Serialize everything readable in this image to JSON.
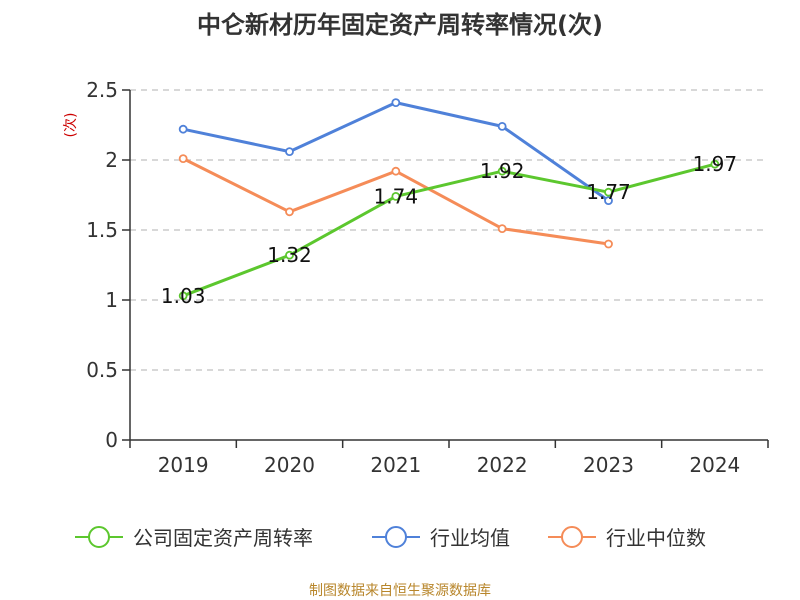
{
  "chart_data": {
    "type": "line",
    "title": "中仑新材历年固定资产周转率情况(次)",
    "ylabel": "(次)",
    "xlabel": "",
    "categories": [
      "2019",
      "2020",
      "2021",
      "2022",
      "2023",
      "2024"
    ],
    "ylim": [
      0,
      2.5
    ],
    "yticks": [
      "0",
      "0.5",
      "1",
      "1.5",
      "2",
      "2.5"
    ],
    "ytick_values": [
      0,
      0.5,
      1,
      1.5,
      2,
      2.5
    ],
    "grid": true,
    "legend_position": "bottom",
    "series": [
      {
        "name": "公司固定资产周转率",
        "color": "#5cc72e",
        "values": [
          1.03,
          1.32,
          1.74,
          1.92,
          1.77,
          1.97
        ],
        "labels": [
          "1.03",
          "1.32",
          "1.74",
          "1.92",
          "1.77",
          "1.97"
        ]
      },
      {
        "name": "行业均值",
        "color": "#4f81d9",
        "values": [
          2.22,
          2.06,
          2.41,
          2.24,
          1.71,
          null
        ]
      },
      {
        "name": "行业中位数",
        "color": "#f58c58",
        "values": [
          2.01,
          1.63,
          1.92,
          1.51,
          1.4,
          null
        ]
      }
    ]
  },
  "source": "制图数据来自恒生聚源数据库"
}
